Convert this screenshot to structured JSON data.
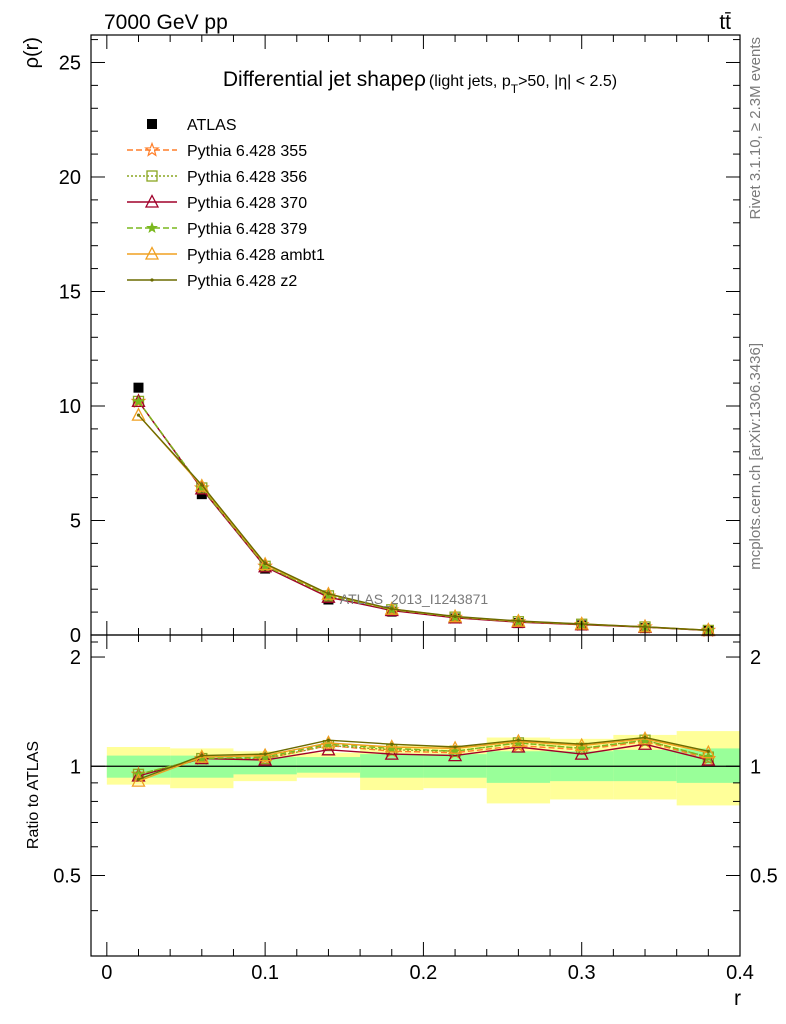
{
  "header": {
    "left": "7000 GeV pp",
    "right": "tt̄"
  },
  "side_labels": {
    "rivet": "Rivet 3.1.10, ≥ 2.3M events",
    "mcplots": "mcplots.cern.ch [arXiv:1306.3436]"
  },
  "watermark": "ATLAS_2013_I1243871",
  "chart_data": [
    {
      "type": "line",
      "title": "Differential jet shape",
      "title_symbol": "ρ",
      "subtitle": "(light jets, p_T>50, |η| < 2.5)",
      "ylabel": "ρ(r)",
      "xlim": [
        -0.01,
        0.4
      ],
      "ylim": [
        0,
        26.2
      ],
      "yticks": [
        0,
        5,
        10,
        15,
        20,
        25
      ],
      "x": [
        0.02,
        0.06,
        0.1,
        0.14,
        0.18,
        0.22,
        0.26,
        0.3,
        0.34,
        0.38
      ],
      "legend_position": "top-left",
      "series": [
        {
          "name": "ATLAS",
          "marker": "square",
          "color": "#000000",
          "line": "none",
          "values": [
            10.8,
            6.15,
            2.9,
            1.55,
            1.02,
            0.72,
            0.52,
            0.42,
            0.3,
            0.19
          ]
        },
        {
          "name": "Pythia 6.428 355",
          "marker": "star",
          "color": "#ff7f2a",
          "line": "dashed",
          "values": [
            10.2,
            6.42,
            3.0,
            1.7,
            1.09,
            0.77,
            0.57,
            0.46,
            0.35,
            0.2
          ]
        },
        {
          "name": "Pythia 6.428 356",
          "marker": "open-square",
          "color": "#8aa620",
          "line": "dotted",
          "values": [
            10.2,
            6.42,
            3.0,
            1.71,
            1.1,
            0.78,
            0.58,
            0.47,
            0.35,
            0.2
          ]
        },
        {
          "name": "Pythia 6.428 370",
          "marker": "open-triangle",
          "color": "#a0002a",
          "line": "solid",
          "values": [
            10.2,
            6.38,
            2.98,
            1.65,
            1.07,
            0.75,
            0.56,
            0.45,
            0.34,
            0.2
          ]
        },
        {
          "name": "Pythia 6.428 379",
          "marker": "star-small",
          "color": "#7ab81e",
          "line": "dashed",
          "values": [
            10.2,
            6.42,
            3.02,
            1.72,
            1.11,
            0.78,
            0.58,
            0.47,
            0.35,
            0.2
          ]
        },
        {
          "name": "Pythia 6.428 ambt1",
          "marker": "open-triangle",
          "color": "#f0a020",
          "line": "solid",
          "values": [
            9.6,
            6.5,
            3.08,
            1.78,
            1.13,
            0.8,
            0.6,
            0.48,
            0.36,
            0.21
          ]
        },
        {
          "name": "Pythia 6.428 z2",
          "marker": "dot",
          "color": "#6b6b00",
          "line": "solid",
          "values": [
            9.6,
            6.55,
            3.12,
            1.8,
            1.14,
            0.81,
            0.61,
            0.48,
            0.36,
            0.21
          ]
        }
      ]
    },
    {
      "type": "line",
      "xlabel": "r",
      "ylabel": "Ratio to ATLAS",
      "xlim": [
        -0.01,
        0.4
      ],
      "ylim": [
        0.3,
        2.3
      ],
      "yticks": [
        0.5,
        1,
        2
      ],
      "xticks": [
        0,
        0.1,
        0.2,
        0.3,
        0.4
      ],
      "reference": 1,
      "bands": [
        {
          "x_low": 0.0,
          "x_high": 0.04,
          "green": [
            0.93,
            1.07
          ],
          "yellow": [
            0.89,
            1.13
          ]
        },
        {
          "x_low": 0.04,
          "x_high": 0.08,
          "green": [
            0.93,
            1.07
          ],
          "yellow": [
            0.87,
            1.12
          ]
        },
        {
          "x_low": 0.08,
          "x_high": 0.12,
          "green": [
            0.95,
            1.06
          ],
          "yellow": [
            0.91,
            1.1
          ]
        },
        {
          "x_low": 0.12,
          "x_high": 0.16,
          "green": [
            0.96,
            1.06
          ],
          "yellow": [
            0.93,
            1.09
          ]
        },
        {
          "x_low": 0.16,
          "x_high": 0.2,
          "green": [
            0.93,
            1.08
          ],
          "yellow": [
            0.86,
            1.14
          ]
        },
        {
          "x_low": 0.2,
          "x_high": 0.24,
          "green": [
            0.93,
            1.08
          ],
          "yellow": [
            0.87,
            1.14
          ]
        },
        {
          "x_low": 0.24,
          "x_high": 0.28,
          "green": [
            0.9,
            1.1
          ],
          "yellow": [
            0.79,
            1.2
          ]
        },
        {
          "x_low": 0.28,
          "x_high": 0.32,
          "green": [
            0.91,
            1.1
          ],
          "yellow": [
            0.81,
            1.19
          ]
        },
        {
          "x_low": 0.32,
          "x_high": 0.36,
          "green": [
            0.91,
            1.11
          ],
          "yellow": [
            0.81,
            1.22
          ]
        },
        {
          "x_low": 0.36,
          "x_high": 0.4,
          "green": [
            0.9,
            1.12
          ],
          "yellow": [
            0.78,
            1.25
          ]
        }
      ],
      "x": [
        0.02,
        0.06,
        0.1,
        0.14,
        0.18,
        0.22,
        0.26,
        0.3,
        0.34,
        0.38
      ],
      "series": [
        {
          "name": "Pythia 6.428 355",
          "color": "#ff7f2a",
          "line": "dashed",
          "values": [
            0.95,
            1.05,
            1.05,
            1.14,
            1.1,
            1.09,
            1.14,
            1.11,
            1.17,
            1.05
          ]
        },
        {
          "name": "Pythia 6.428 356",
          "color": "#8aa620",
          "line": "dotted",
          "values": [
            0.95,
            1.05,
            1.05,
            1.14,
            1.11,
            1.1,
            1.16,
            1.12,
            1.18,
            1.06
          ]
        },
        {
          "name": "Pythia 6.428 370",
          "color": "#a0002a",
          "line": "solid",
          "values": [
            0.94,
            1.05,
            1.04,
            1.11,
            1.08,
            1.07,
            1.13,
            1.08,
            1.15,
            1.04
          ]
        },
        {
          "name": "Pythia 6.428 379",
          "color": "#7ab81e",
          "line": "dashed",
          "values": [
            0.95,
            1.05,
            1.06,
            1.15,
            1.12,
            1.1,
            1.16,
            1.12,
            1.18,
            1.06
          ]
        },
        {
          "name": "Pythia 6.428 ambt1",
          "color": "#f0a020",
          "line": "solid",
          "values": [
            0.91,
            1.06,
            1.07,
            1.16,
            1.13,
            1.12,
            1.17,
            1.14,
            1.19,
            1.09
          ]
        },
        {
          "name": "Pythia 6.428 z2",
          "color": "#6b6b00",
          "line": "solid",
          "values": [
            0.92,
            1.07,
            1.08,
            1.18,
            1.15,
            1.13,
            1.18,
            1.15,
            1.2,
            1.1
          ]
        }
      ]
    }
  ]
}
